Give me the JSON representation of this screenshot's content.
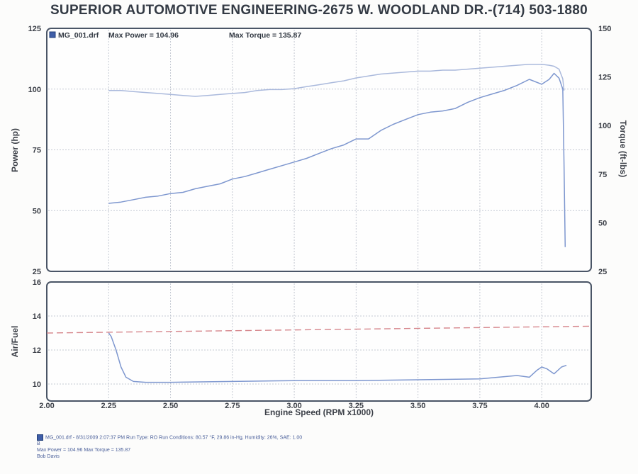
{
  "header": {
    "title": "SUPERIOR AUTOMOTIVE ENGINEERING-2675 W. WOODLAND DR.-(714) 503-1880"
  },
  "legend": {
    "file": "MG_001.drf",
    "max_power": "Max Power = 104.96",
    "max_torque": "Max Torque = 135.87"
  },
  "colors": {
    "power_line": "#7e97cf",
    "torque_line": "#aab9dc",
    "af_line": "#7e97cf",
    "af_target": "#d6868c",
    "grid": "#c4c9d3",
    "frame": "#4a5566",
    "axis_text": "#3b3f47"
  },
  "footer": {
    "line1": "MG_001.drf - 8/31/2009 2:07:37 PM  Run Type: RO  Run Conditions: 80.57 °F, 29.86 in-Hg, Humidity: 26%, SAE: 1.00",
    "line2": "B",
    "line3": "Max Power = 104.96  Max Torque = 135.87",
    "line4": "Bob Davis"
  },
  "chart_data": [
    {
      "type": "line",
      "xlabel": "Engine Speed (RPM x1000)",
      "ylabel": "Power (hp)",
      "y2label": "Torque (ft-lbs)",
      "xlim": [
        2.0,
        4.2
      ],
      "ylim": [
        25,
        125
      ],
      "y2lim": [
        25,
        150
      ],
      "xticks": [
        "2.00",
        "2.25",
        "2.50",
        "2.75",
        "3.00",
        "3.25",
        "3.50",
        "3.75",
        "4.00"
      ],
      "yticks": [
        "25",
        "50",
        "75",
        "100",
        "125"
      ],
      "y2ticks": [
        "25",
        "50",
        "75",
        "100",
        "125",
        "150"
      ],
      "grid": true,
      "legend_position": "top-left",
      "series": [
        {
          "name": "Power",
          "axis": "left",
          "x": [
            2.25,
            2.3,
            2.35,
            2.4,
            2.45,
            2.5,
            2.55,
            2.6,
            2.65,
            2.7,
            2.75,
            2.8,
            2.85,
            2.9,
            2.95,
            3.0,
            3.05,
            3.1,
            3.15,
            3.2,
            3.25,
            3.3,
            3.35,
            3.4,
            3.45,
            3.5,
            3.55,
            3.6,
            3.65,
            3.7,
            3.75,
            3.8,
            3.85,
            3.9,
            3.95,
            4.0,
            4.03,
            4.05,
            4.07,
            4.085,
            4.09,
            4.095
          ],
          "values": [
            53.0,
            53.5,
            54.5,
            55.5,
            56.0,
            57.0,
            57.5,
            59.0,
            60.0,
            61.0,
            63.0,
            64.0,
            65.5,
            67.0,
            68.5,
            70.0,
            71.5,
            73.5,
            75.5,
            77.0,
            79.5,
            79.5,
            83.0,
            85.5,
            87.5,
            89.5,
            90.5,
            91.0,
            92.0,
            94.5,
            96.5,
            98.0,
            99.5,
            101.5,
            104.0,
            102.0,
            104.0,
            106.5,
            104.5,
            100.0,
            70.0,
            35.0
          ]
        },
        {
          "name": "Torque",
          "axis": "right",
          "x": [
            2.25,
            2.3,
            2.35,
            2.4,
            2.45,
            2.5,
            2.55,
            2.6,
            2.65,
            2.7,
            2.75,
            2.8,
            2.85,
            2.9,
            2.95,
            3.0,
            3.05,
            3.1,
            3.15,
            3.2,
            3.25,
            3.3,
            3.35,
            3.4,
            3.45,
            3.5,
            3.55,
            3.6,
            3.65,
            3.7,
            3.75,
            3.8,
            3.85,
            3.9,
            3.95,
            4.0,
            4.03,
            4.05,
            4.07,
            4.085,
            4.09
          ],
          "values": [
            118.0,
            118.0,
            117.5,
            117.0,
            116.5,
            116.0,
            115.5,
            115.0,
            115.5,
            116.0,
            116.5,
            117.0,
            118.0,
            118.5,
            118.5,
            119.0,
            120.0,
            121.0,
            122.0,
            123.0,
            124.5,
            125.5,
            126.5,
            127.0,
            127.5,
            128.0,
            128.0,
            128.5,
            128.5,
            129.0,
            129.5,
            130.0,
            130.5,
            131.0,
            131.5,
            131.5,
            131.0,
            130.5,
            129.0,
            124.0,
            118.0
          ]
        }
      ]
    },
    {
      "type": "line",
      "xlabel": "Engine Speed (RPM x1000)",
      "ylabel": "Air/Fuel",
      "xlim": [
        2.0,
        4.2
      ],
      "ylim": [
        9,
        16
      ],
      "xticks": [
        "2.00",
        "2.25",
        "2.50",
        "2.75",
        "3.00",
        "3.25",
        "3.50",
        "3.75",
        "4.00"
      ],
      "yticks": [
        "10",
        "12",
        "14",
        "16"
      ],
      "grid": true,
      "series": [
        {
          "name": "Air/Fuel",
          "x": [
            2.25,
            2.26,
            2.28,
            2.3,
            2.32,
            2.35,
            2.4,
            2.5,
            2.75,
            3.0,
            3.25,
            3.5,
            3.75,
            3.9,
            3.95,
            3.98,
            4.0,
            4.02,
            4.05,
            4.08,
            4.1
          ],
          "values": [
            13.0,
            12.8,
            12.0,
            11.0,
            10.4,
            10.15,
            10.1,
            10.1,
            10.15,
            10.2,
            10.2,
            10.25,
            10.3,
            10.5,
            10.4,
            10.8,
            11.0,
            10.9,
            10.6,
            11.0,
            11.1
          ]
        },
        {
          "name": "Target",
          "style": "dashed",
          "x": [
            2.0,
            4.2
          ],
          "values": [
            13.0,
            13.4
          ]
        }
      ]
    }
  ]
}
